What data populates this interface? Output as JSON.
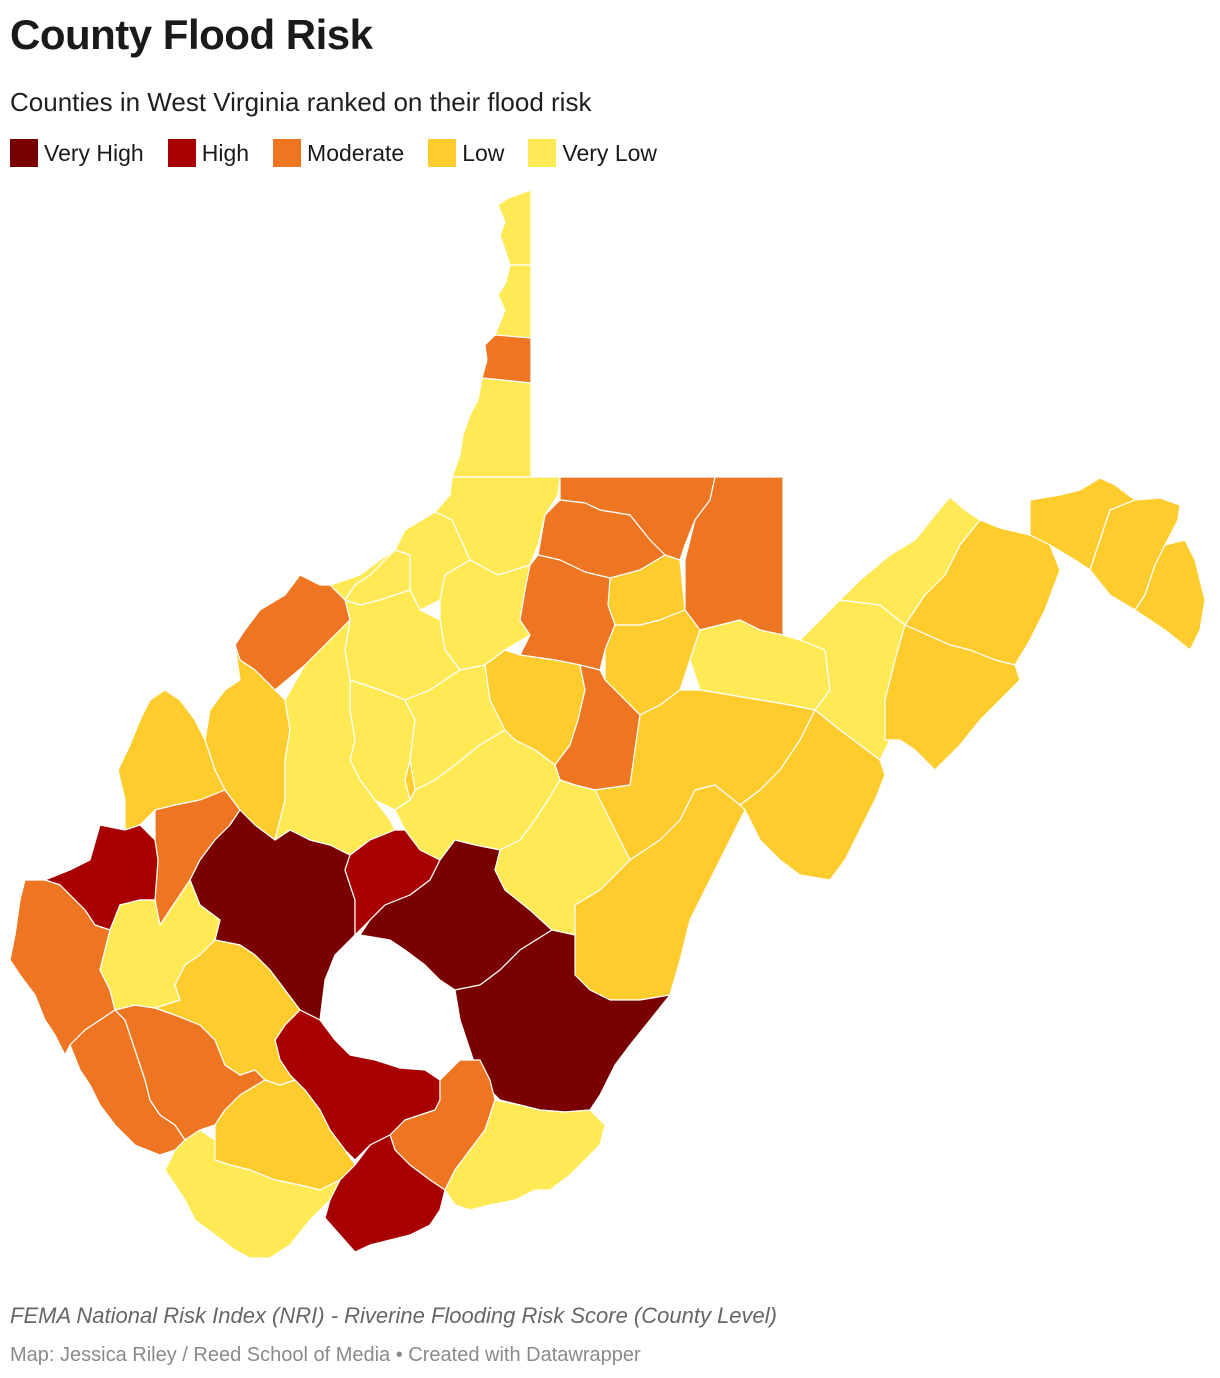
{
  "header": {
    "title": "County Flood Risk",
    "subtitle": "Counties in West Virginia ranked on their flood risk"
  },
  "legend": {
    "items": [
      {
        "label": "Very High",
        "color": "#7a0000"
      },
      {
        "label": "High",
        "color": "#a80000"
      },
      {
        "label": "Moderate",
        "color": "#ee7622"
      },
      {
        "label": "Low",
        "color": "#ffcc2e"
      },
      {
        "label": "Very Low",
        "color": "#ffea55"
      }
    ]
  },
  "map": {
    "counties": [
      {
        "risk": "Very Low"
      },
      {
        "risk": "Very Low"
      },
      {
        "risk": "Moderate"
      },
      {
        "risk": "Very Low"
      },
      {
        "risk": "Very Low"
      },
      {
        "risk": "Moderate"
      },
      {
        "risk": "Moderate"
      },
      {
        "risk": "Moderate"
      },
      {
        "risk": "Low"
      },
      {
        "risk": "Very Low"
      },
      {
        "risk": "Very Low"
      },
      {
        "risk": "Very Low"
      },
      {
        "risk": "Very Low"
      },
      {
        "risk": "Moderate"
      },
      {
        "risk": "Very Low"
      },
      {
        "risk": "Moderate"
      },
      {
        "risk": "Low"
      },
      {
        "risk": "Very Low"
      },
      {
        "risk": "Very Low"
      },
      {
        "risk": "Very Low"
      },
      {
        "risk": "Low"
      },
      {
        "risk": "Low"
      },
      {
        "risk": "Low"
      },
      {
        "risk": "Low"
      },
      {
        "risk": "Low"
      },
      {
        "risk": "Very Low"
      },
      {
        "risk": "Very Low"
      },
      {
        "risk": "Low"
      },
      {
        "risk": "Moderate"
      },
      {
        "risk": "Low"
      },
      {
        "risk": "Low"
      },
      {
        "risk": "Low"
      },
      {
        "risk": "Low"
      },
      {
        "risk": "Low"
      },
      {
        "risk": "Moderate"
      },
      {
        "risk": "High"
      },
      {
        "risk": "Very High"
      },
      {
        "risk": "Very Low"
      },
      {
        "risk": "Very Low"
      },
      {
        "risk": "High"
      },
      {
        "risk": "Very High"
      },
      {
        "risk": "Very Low"
      },
      {
        "risk": "Low"
      },
      {
        "risk": "Very High"
      },
      {
        "risk": "Moderate"
      },
      {
        "risk": "Moderate"
      },
      {
        "risk": "Moderate"
      },
      {
        "risk": "Very Low"
      },
      {
        "risk": "High"
      },
      {
        "risk": "Moderate"
      },
      {
        "risk": "Low"
      },
      {
        "risk": "Very Low"
      },
      {
        "risk": "High"
      },
      {
        "risk": "Very Low"
      },
      {
        "risk": "Low"
      }
    ]
  },
  "footer": {
    "notes": "FEMA National Risk Index (NRI) - Riverine Flooding Risk Score (County Level)",
    "byline": "Map: Jessica Riley / Reed School of Media • Created with Datawrapper"
  }
}
